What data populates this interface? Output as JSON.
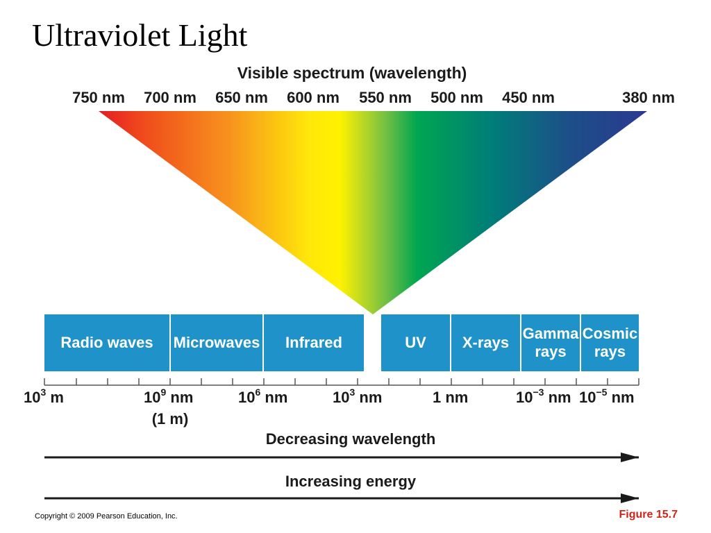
{
  "slide": {
    "title": "Ultraviolet Light",
    "copyright": "Copyright © 2009 Pearson Education, Inc.",
    "figure_label": "Figure 15.7"
  },
  "visible_spectrum": {
    "heading": "Visible spectrum (wavelength)",
    "wavelengths": [
      "750 nm",
      "700 nm",
      "650 nm",
      "600 nm",
      "550 nm",
      "500 nm",
      "450 nm",
      "380 nm"
    ],
    "colors": [
      "#e31d24",
      "#f04a1c",
      "#f7941d",
      "#ffe60a",
      "#fff200",
      "#7ac142",
      "#00a650",
      "#007c79",
      "#1d4e89",
      "#2b3990"
    ]
  },
  "bands": [
    {
      "label": "Radio waves"
    },
    {
      "label": "Microwaves"
    },
    {
      "label": "Infrared"
    },
    {
      "label": "UV"
    },
    {
      "label": "X-rays"
    },
    {
      "label": "Gamma rays"
    },
    {
      "label": "Cosmic rays"
    }
  ],
  "band_color": "#1f93c9",
  "scale": {
    "labels": [
      {
        "base": "10",
        "exp": "3",
        "unit": " m"
      },
      {
        "base": "10",
        "exp": "9",
        "unit": " nm"
      },
      {
        "base": "10",
        "exp": "6",
        "unit": " nm"
      },
      {
        "base": "10",
        "exp": "3",
        "unit": " nm"
      },
      {
        "base": "1",
        "exp": "",
        "unit": " nm"
      },
      {
        "base": "10",
        "exp": "−3",
        "unit": " nm"
      },
      {
        "base": "10",
        "exp": "−5",
        "unit": " nm"
      }
    ],
    "sub_label": "(1 m)"
  },
  "arrows": {
    "wavelength": "Decreasing wavelength",
    "energy": "Increasing energy"
  }
}
